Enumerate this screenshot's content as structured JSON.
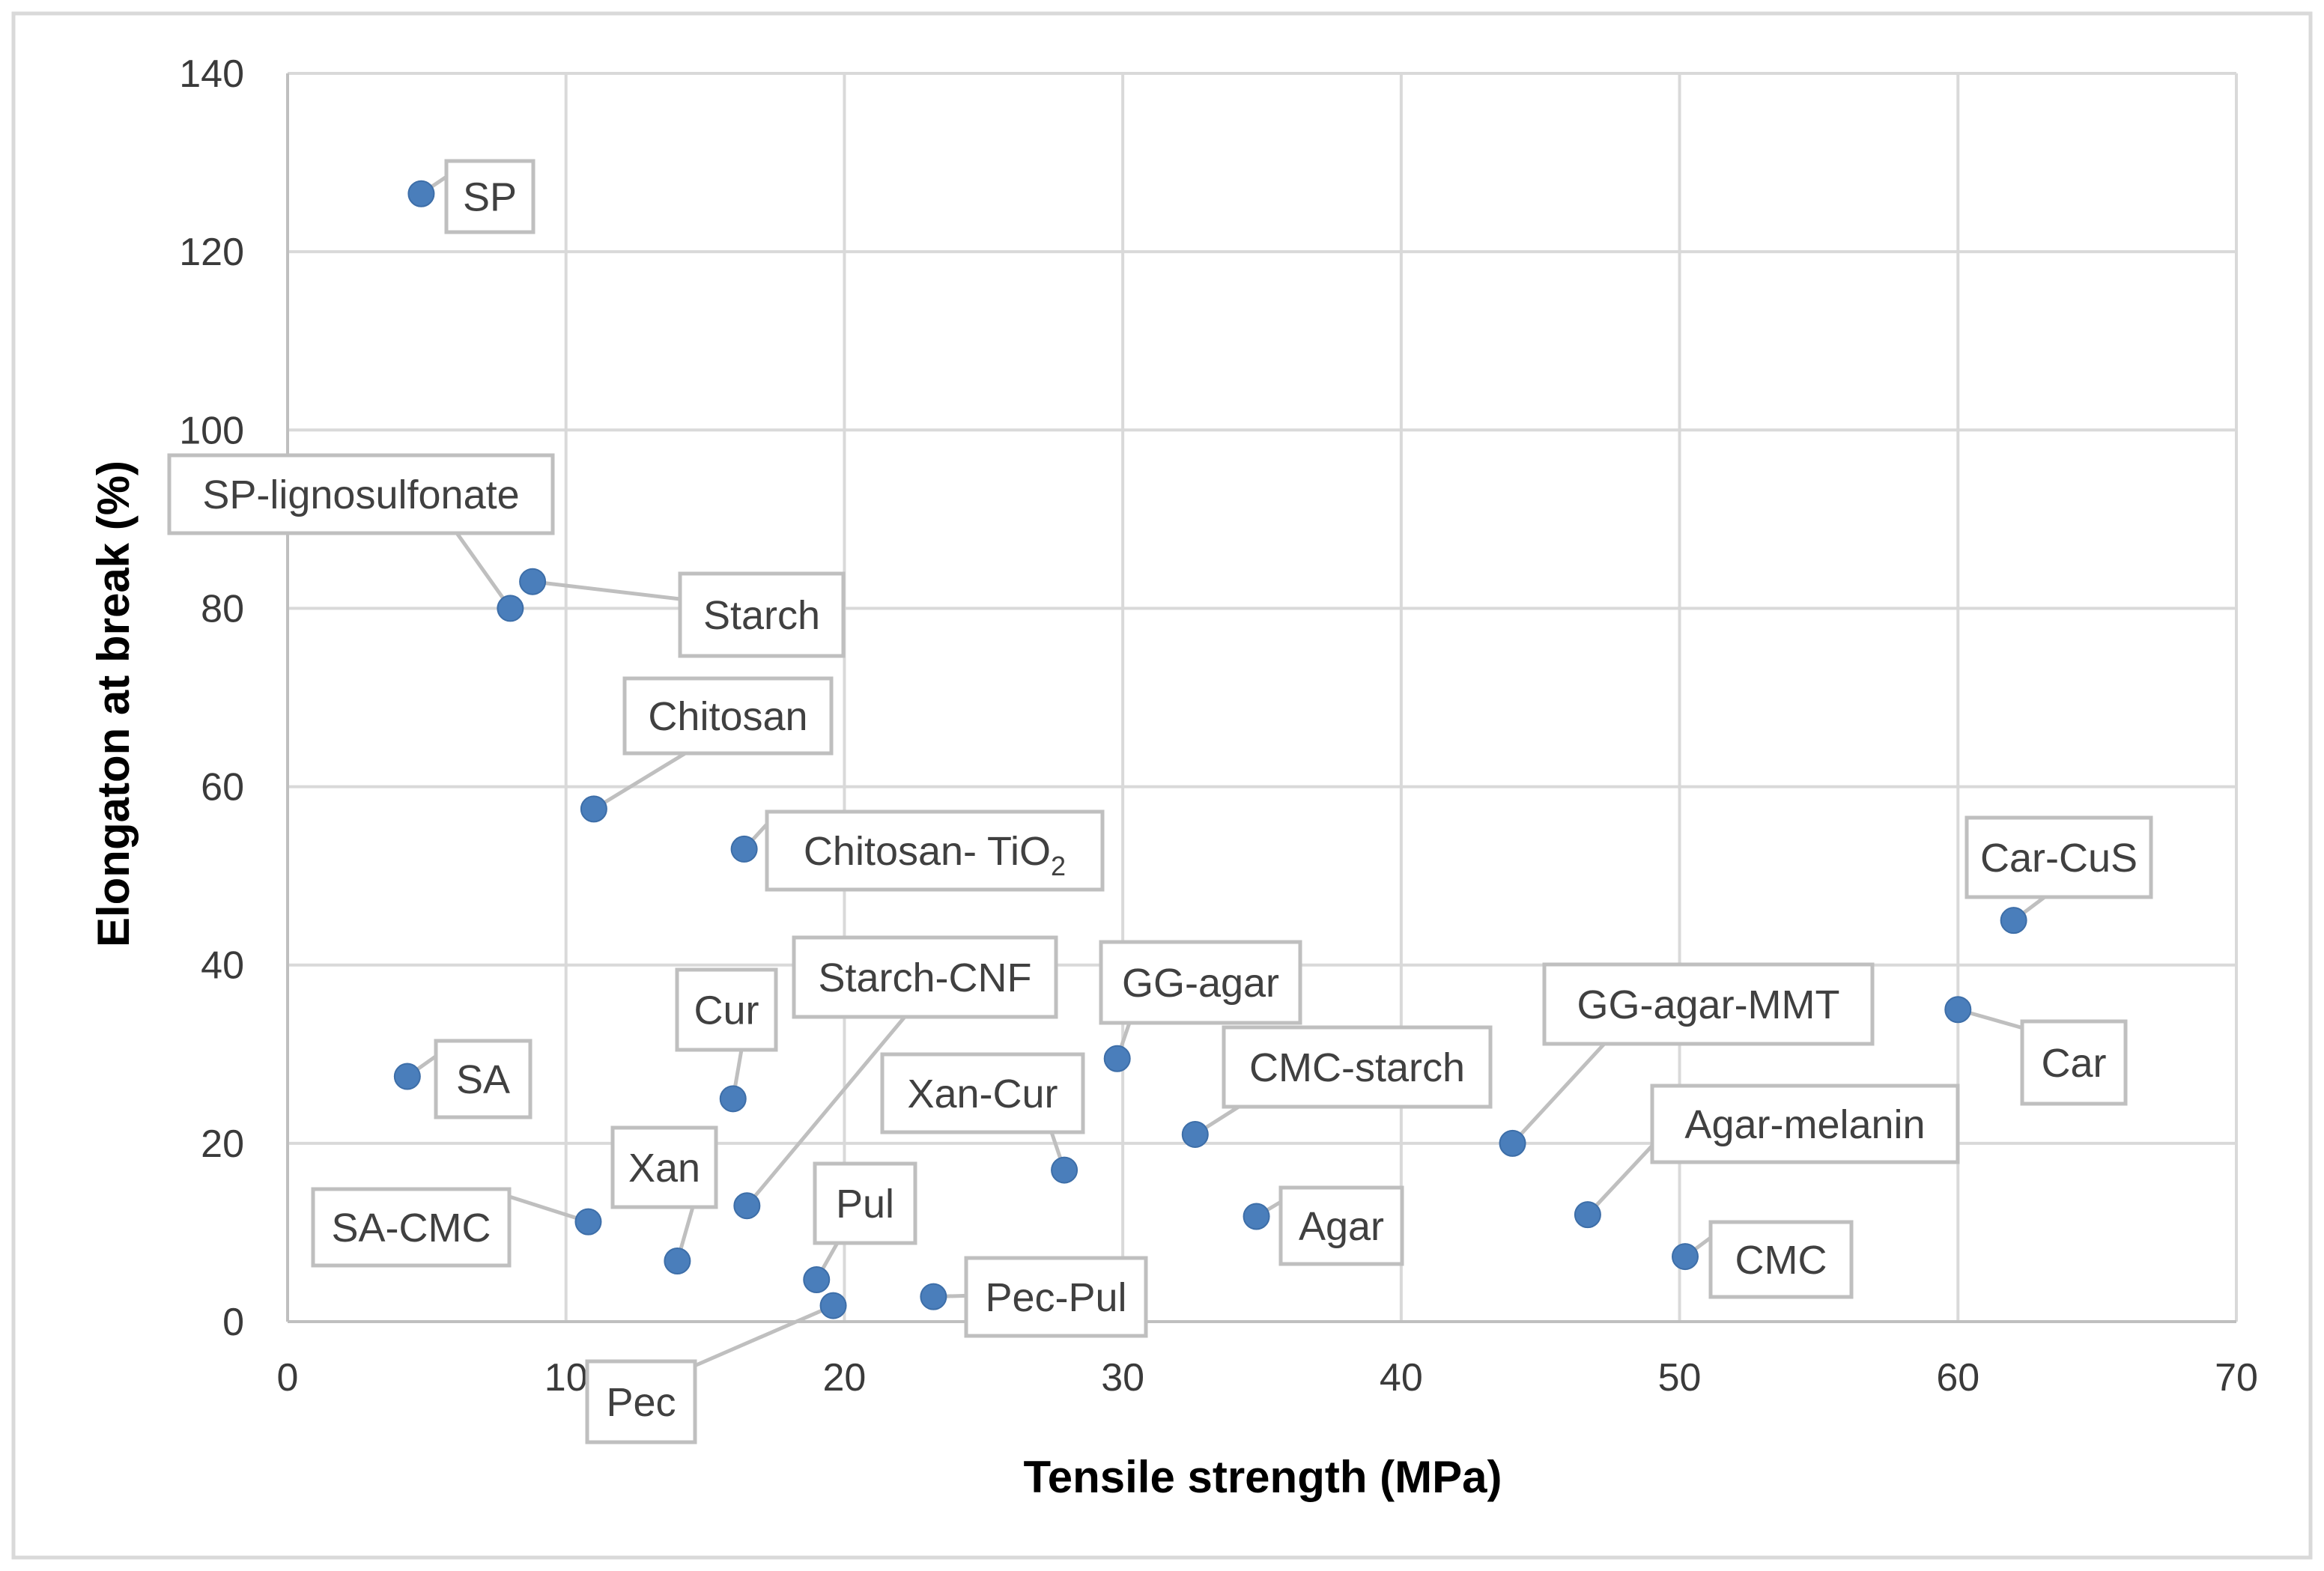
{
  "chart_data": {
    "type": "scatter",
    "title": "",
    "xlabel": "Tensile strength (MPa)",
    "ylabel": "Elongaton at break (%)",
    "xlim": [
      0,
      70
    ],
    "ylim": [
      0,
      140
    ],
    "x_ticks": [
      "0",
      "10",
      "20",
      "30",
      "40",
      "50",
      "60",
      "70"
    ],
    "y_ticks": [
      "0",
      "20",
      "40",
      "60",
      "80",
      "100",
      "120",
      "140"
    ],
    "grid": true,
    "legend": "none",
    "marker_color": "#4a7ebb",
    "points": [
      {
        "label": "SP",
        "x": 4.8,
        "y": 126.5
      },
      {
        "label": "SP-lignosulfonate",
        "x": 8.0,
        "y": 80
      },
      {
        "label": "Starch",
        "x": 8.8,
        "y": 83
      },
      {
        "label": "Chitosan",
        "x": 11.0,
        "y": 57.5
      },
      {
        "label": "Chitosan-",
        "label_sub": "2",
        "label_main_suffix": "TiO",
        "x": 16.4,
        "y": 53
      },
      {
        "label": "Car-CuS",
        "x": 62.0,
        "y": 45
      },
      {
        "label": "Car",
        "x": 60.0,
        "y": 35
      },
      {
        "label": "SA",
        "x": 4.3,
        "y": 27.5
      },
      {
        "label": "Cur",
        "x": 16.0,
        "y": 25
      },
      {
        "label": "Starch-CNF",
        "x": 16.5,
        "y": 13
      },
      {
        "label": "GG-agar",
        "x": 29.8,
        "y": 29.5
      },
      {
        "label": "CMC-starch",
        "x": 32.6,
        "y": 21
      },
      {
        "label": "GG-agar-MMT",
        "x": 44.0,
        "y": 20
      },
      {
        "label": "Agar-melanin",
        "x": 46.7,
        "y": 12
      },
      {
        "label": "Xan-Cur",
        "x": 27.9,
        "y": 17
      },
      {
        "label": "Xan",
        "x": 14.0,
        "y": 6.8
      },
      {
        "label": "SA-CMC",
        "x": 10.8,
        "y": 11.2
      },
      {
        "label": "Agar",
        "x": 34.8,
        "y": 11.8
      },
      {
        "label": "CMC",
        "x": 50.2,
        "y": 7.3
      },
      {
        "label": "Pul",
        "x": 19.0,
        "y": 4.7
      },
      {
        "label": "Pec",
        "x": 19.6,
        "y": 1.8
      },
      {
        "label": "Pec-Pul",
        "x": 23.2,
        "y": 2.8
      }
    ]
  }
}
